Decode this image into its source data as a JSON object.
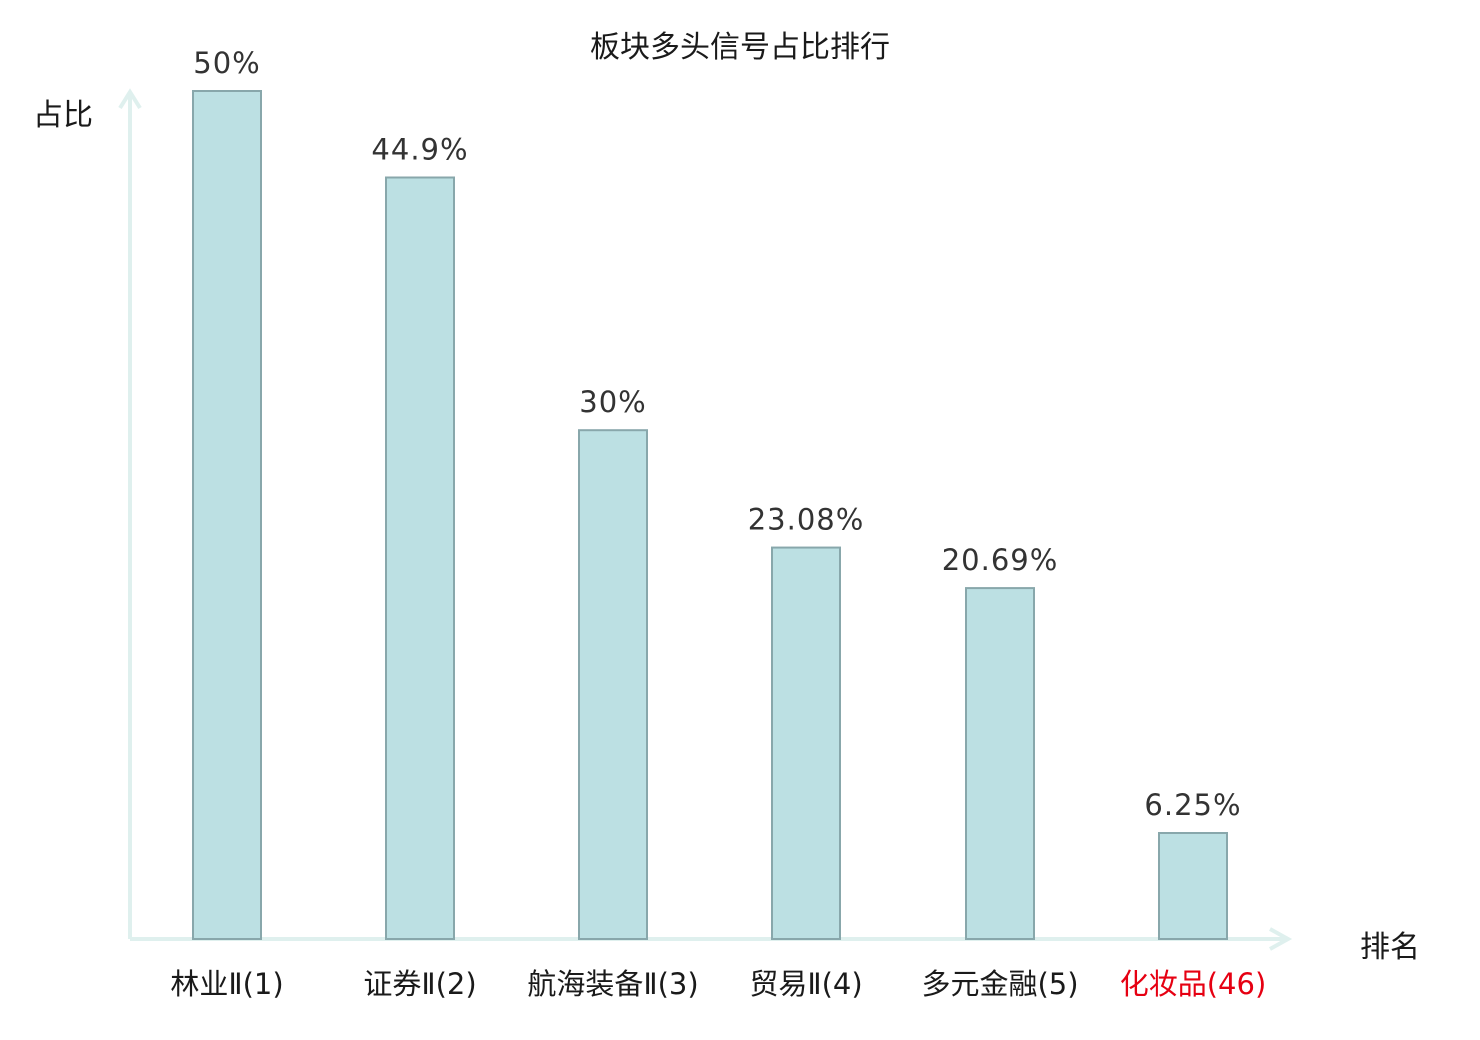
{
  "chart_data": {
    "type": "bar",
    "title": "板块多头信号占比排行",
    "ylabel": "占比",
    "xlabel": "排名",
    "ylim": [
      0,
      50
    ],
    "grid": false,
    "legend": "none",
    "categories": [
      {
        "name": "林业Ⅱ",
        "rank": "(1)",
        "highlight": false
      },
      {
        "name": "证券Ⅱ",
        "rank": "(2)",
        "highlight": false
      },
      {
        "name": "航海装备Ⅱ",
        "rank": "(3)",
        "highlight": false
      },
      {
        "name": "贸易Ⅱ",
        "rank": "(4)",
        "highlight": false
      },
      {
        "name": "多元金融",
        "rank": "(5)",
        "highlight": false
      },
      {
        "name": "化妆品",
        "rank": "(46)",
        "highlight": true
      }
    ],
    "values": [
      50,
      44.9,
      30,
      23.08,
      20.69,
      6.25
    ],
    "value_labels": [
      "50%",
      "44.9%",
      "30%",
      "23.08%",
      "20.69%",
      "6.25%"
    ],
    "colors": {
      "bar_fill": "#bce0e3",
      "bar_stroke": "#88a7ab",
      "axis": "#dff0ee",
      "text": "#1a1a1a",
      "value_text": "#333333",
      "highlight": "#e60012"
    }
  }
}
